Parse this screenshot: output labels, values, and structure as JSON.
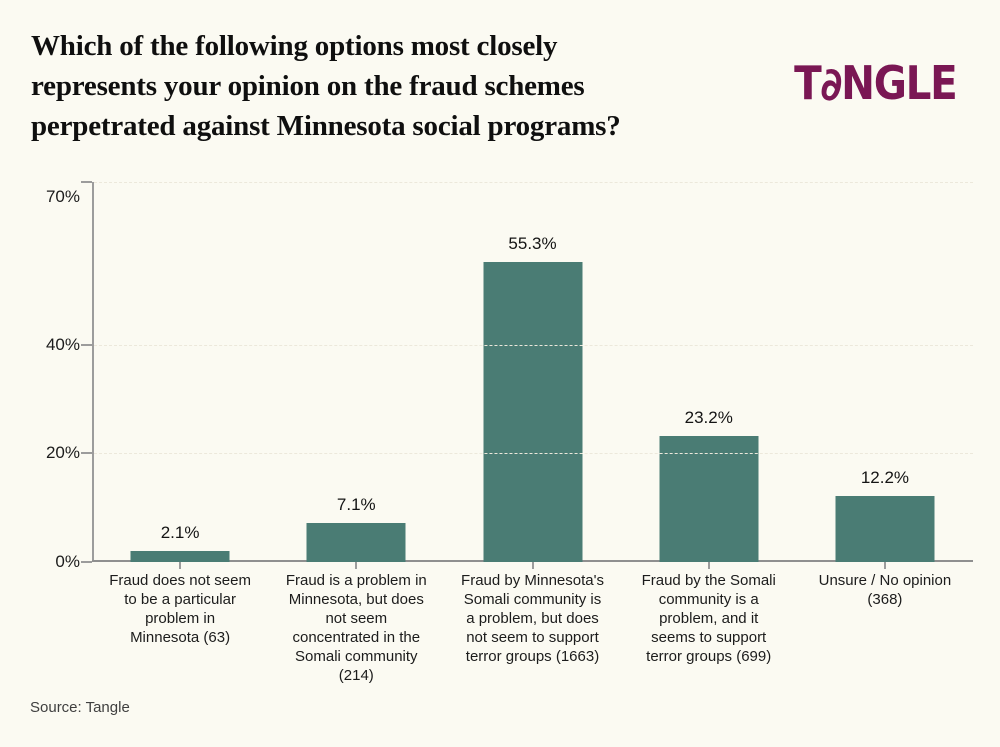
{
  "header": {
    "title": "Which of the following options most closely represents your opinion on the fraud schemes perpetrated against Minnesota social programs?",
    "title_lines": [
      "Which of the following options most closely",
      "represents your opinion on the fraud schemes",
      "perpetrated against Minnesota social programs?"
    ],
    "logo": {
      "t": "T",
      "a": "∂",
      "rest": "NGLE",
      "brand": "TANGLE"
    }
  },
  "footer": {
    "source": "Source: Tangle"
  },
  "colors": {
    "background": "#FBFAF2",
    "bar": "#4A7C74",
    "logo": "#7A1754",
    "axis": "#9C9C9C",
    "gridline": "#ECE8DB",
    "text": "#1C1C1C"
  },
  "chart_data": {
    "type": "bar",
    "title": "Which of the following options most closely represents your opinion on the fraud schemes perpetrated against Minnesota social programs?",
    "categories": [
      "Fraud does not seem\nto be a particular\nproblem in\nMinnesota (63)",
      "Fraud is a problem in\nMinnesota, but does\nnot seem\nconcentrated in the\nSomali community\n(214)",
      "Fraud by Minnesota's\nSomali community is\na problem, but does\nnot seem to support\nterror groups (1663)",
      "Fraud by the Somali\ncommunity is a\nproblem, and it\nseems to support\nterror groups (699)",
      "Unsure / No opinion\n(368)"
    ],
    "values": [
      2.1,
      7.1,
      55.3,
      23.2,
      12.2
    ],
    "value_labels": [
      "2.1%",
      "7.1%",
      "55.3%",
      "23.2%",
      "12.2%"
    ],
    "response_counts": [
      63,
      214,
      1663,
      699,
      368
    ],
    "xlabel": "",
    "ylabel": "",
    "ylim": [
      0,
      70
    ],
    "yticks": [
      0,
      20,
      40,
      70
    ],
    "ytick_labels": [
      "0%",
      "20%",
      "40%",
      "70%"
    ],
    "grid": "horizontal dashed at 20, 40, 70",
    "legend": "none",
    "bar_color": "#4A7C74",
    "source": "Source: Tangle"
  }
}
